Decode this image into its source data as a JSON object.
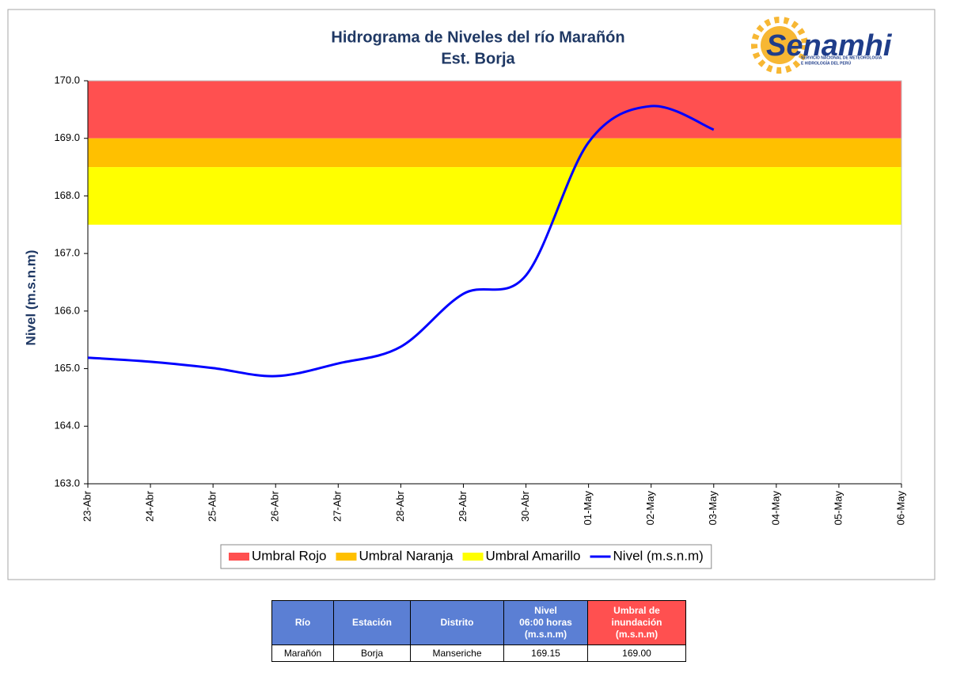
{
  "chart_data": {
    "type": "line",
    "title": [
      "Hidrograma de Niveles del río Marañón",
      "Est. Borja"
    ],
    "y_label": "Nivel (m.s.n.m)",
    "categories": [
      "23-Abr",
      "24-Abr",
      "25-Abr",
      "26-Abr",
      "27-Abr",
      "28-Abr",
      "29-Abr",
      "30-Abr",
      "01-May",
      "02-May",
      "03-May",
      "04-May",
      "05-May",
      "06-May"
    ],
    "bands": [
      {
        "name": "Umbral Rojo",
        "color": "#ff5050",
        "from": 169,
        "to": 170
      },
      {
        "name": "Umbral Naranja",
        "color": "#ffc000",
        "from": 168.5,
        "to": 169
      },
      {
        "name": "Umbral Amarillo",
        "color": "#ffff00",
        "from": 167.5,
        "to": 168.5
      }
    ],
    "series": [
      {
        "name": "Nivel (m.s.n.m)",
        "color": "#0000ff",
        "values": [
          165.19,
          165.12,
          165.01,
          164.87,
          165.09,
          165.38,
          166.3,
          166.62,
          168.93,
          169.56,
          169.15,
          null,
          null,
          null
        ]
      }
    ],
    "ylim": [
      163,
      170
    ],
    "yticks": [
      {
        "value": 163,
        "label": "163.0"
      },
      {
        "value": 164,
        "label": "164.0"
      },
      {
        "value": 165,
        "label": "165.0"
      },
      {
        "value": 166,
        "label": "166.0"
      },
      {
        "value": 167,
        "label": "167.0"
      },
      {
        "value": 168,
        "label": "168.0"
      },
      {
        "value": 169,
        "label": "169.0"
      },
      {
        "value": 170,
        "label": "170.0"
      }
    ],
    "grid": false,
    "legend": "bottom"
  },
  "logo": {
    "name": "Senamhi",
    "tagline": [
      "SERVICIO NACIONAL DE METEOROLOGÍA",
      "E HIDROLOGÍA DEL PERÚ"
    ]
  },
  "table": {
    "headers": [
      [
        "Río"
      ],
      [
        "Estación"
      ],
      [
        "Distrito"
      ],
      [
        "Nivel",
        "06:00 horas",
        "(m.s.n.m)"
      ],
      [
        "Umbral de",
        "inundación",
        "(m.s.n.m)"
      ]
    ],
    "rows": [
      [
        "Marañón",
        "Borja",
        "Manseriche",
        "169.15",
        "169.00"
      ]
    ]
  }
}
